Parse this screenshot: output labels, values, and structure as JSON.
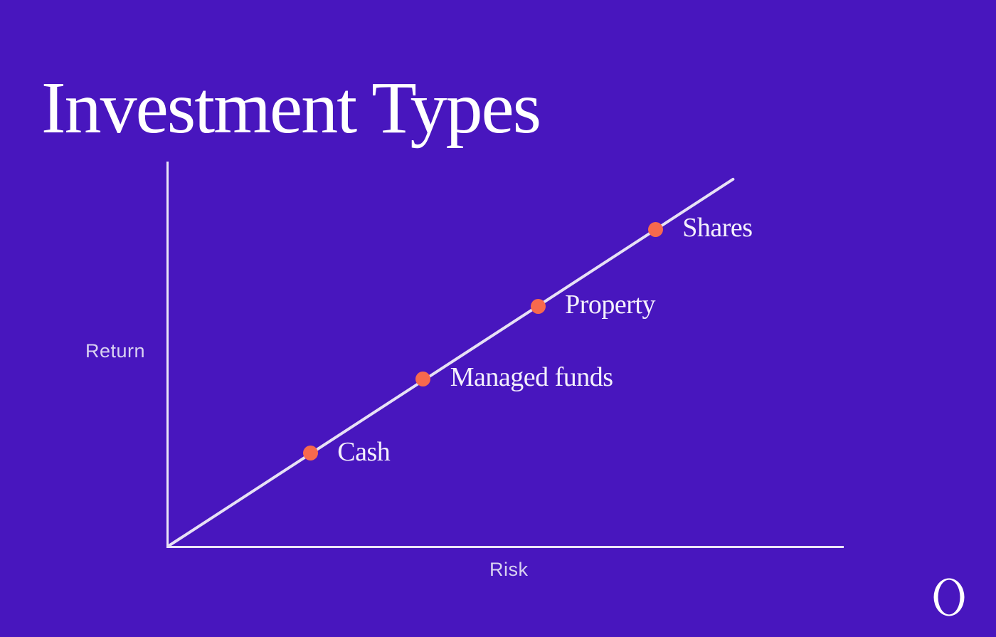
{
  "page": {
    "title": "Investment Types",
    "logo": "ring-o-logo-mark"
  },
  "colors": {
    "background": "#4816BE",
    "title_text": "#FFFFFF",
    "axis_line": "#EAE5F7",
    "trend_line": "#E7E1F5",
    "point_dot": "#F7694D",
    "point_label_text": "#F4F0FC",
    "axis_label_text": "#D9D2F1",
    "logo": "#FFFFFF"
  },
  "chart_data": {
    "type": "scatter",
    "title": "Investment Types",
    "xlabel": "Risk",
    "ylabel": "Return",
    "x_range": [
      0,
      1
    ],
    "y_range": [
      0,
      1
    ],
    "grid": false,
    "axes_numeric_ticks": false,
    "legend": "none",
    "trend_line": {
      "x1": 0.0,
      "y1": 0.0,
      "x2": 0.836,
      "y2": 0.954
    },
    "points": [
      {
        "label": "Cash",
        "risk": 0.21,
        "return": 0.241
      },
      {
        "label": "Managed funds",
        "risk": 0.377,
        "return": 0.435
      },
      {
        "label": "Property",
        "risk": 0.547,
        "return": 0.624
      },
      {
        "label": "Shares",
        "risk": 0.721,
        "return": 0.824
      }
    ]
  }
}
